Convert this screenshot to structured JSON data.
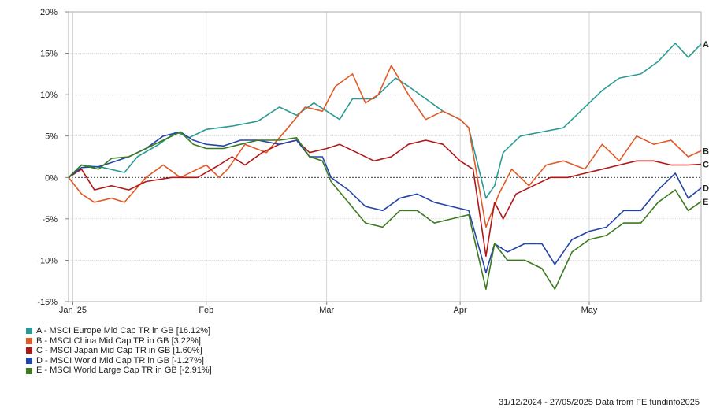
{
  "footer": "31/12/2024 - 27/05/2025 Data from FE fundinfo2025",
  "chart_data": {
    "type": "line",
    "ylim": [
      -15,
      20
    ],
    "y_ticks": [
      "20%",
      "15%",
      "10%",
      "5%",
      "0%",
      "-5%",
      "-10%",
      "-15%"
    ],
    "y_tick_values": [
      20,
      15,
      10,
      5,
      0,
      -5,
      -10,
      -15
    ],
    "x_range": [
      "2024-12-31",
      "2025-05-27"
    ],
    "x_ticks": [
      {
        "date": "2025-01-01",
        "label": "Jan '25"
      },
      {
        "date": "2025-02-01",
        "label": "Feb"
      },
      {
        "date": "2025-03-01",
        "label": "Mar"
      },
      {
        "date": "2025-04-01",
        "label": "Apr"
      },
      {
        "date": "2025-05-01",
        "label": "May"
      }
    ],
    "grid": true,
    "legend_position": "bottom-left",
    "series": [
      {
        "id": "A",
        "name": "A - MSCI Europe Mid Cap TR in GB [16.12%]",
        "color": "#2a9b94",
        "end_label": "A",
        "points": [
          [
            "2024-12-31",
            0
          ],
          [
            "2025-01-03",
            1.5
          ],
          [
            "2025-01-08",
            1.2
          ],
          [
            "2025-01-13",
            0.6
          ],
          [
            "2025-01-16",
            2.5
          ],
          [
            "2025-01-21",
            4
          ],
          [
            "2025-01-25",
            5.5
          ],
          [
            "2025-01-28",
            4.8
          ],
          [
            "2025-02-01",
            5.8
          ],
          [
            "2025-02-07",
            6.2
          ],
          [
            "2025-02-13",
            6.8
          ],
          [
            "2025-02-18",
            8.5
          ],
          [
            "2025-02-22",
            7.5
          ],
          [
            "2025-02-26",
            9
          ],
          [
            "2025-03-01",
            8
          ],
          [
            "2025-03-04",
            7
          ],
          [
            "2025-03-07",
            9.5
          ],
          [
            "2025-03-12",
            9.5
          ],
          [
            "2025-03-17",
            12
          ],
          [
            "2025-03-20",
            11
          ],
          [
            "2025-03-24",
            9.5
          ],
          [
            "2025-03-28",
            8
          ],
          [
            "2025-04-01",
            7
          ],
          [
            "2025-04-03",
            6
          ],
          [
            "2025-04-07",
            -2.5
          ],
          [
            "2025-04-09",
            -1
          ],
          [
            "2025-04-11",
            3
          ],
          [
            "2025-04-15",
            5
          ],
          [
            "2025-04-20",
            5.5
          ],
          [
            "2025-04-25",
            6
          ],
          [
            "2025-04-30",
            8.5
          ],
          [
            "2025-05-04",
            10.5
          ],
          [
            "2025-05-08",
            12
          ],
          [
            "2025-05-13",
            12.5
          ],
          [
            "2025-05-17",
            14
          ],
          [
            "2025-05-21",
            16.2
          ],
          [
            "2025-05-24",
            14.5
          ],
          [
            "2025-05-27",
            16.12
          ]
        ]
      },
      {
        "id": "B",
        "name": "B - MSCI China Mid Cap TR in GB [3.22%]",
        "color": "#e05a28",
        "end_label": "B",
        "points": [
          [
            "2024-12-31",
            0
          ],
          [
            "2025-01-03",
            -2
          ],
          [
            "2025-01-06",
            -3
          ],
          [
            "2025-01-10",
            -2.5
          ],
          [
            "2025-01-13",
            -3
          ],
          [
            "2025-01-18",
            0
          ],
          [
            "2025-01-22",
            1.5
          ],
          [
            "2025-01-26",
            0
          ],
          [
            "2025-02-01",
            1.5
          ],
          [
            "2025-02-04",
            0
          ],
          [
            "2025-02-06",
            1
          ],
          [
            "2025-02-10",
            4
          ],
          [
            "2025-02-15",
            3
          ],
          [
            "2025-02-20",
            6
          ],
          [
            "2025-02-24",
            8.5
          ],
          [
            "2025-02-28",
            8
          ],
          [
            "2025-03-03",
            11
          ],
          [
            "2025-03-07",
            12.5
          ],
          [
            "2025-03-10",
            9
          ],
          [
            "2025-03-13",
            10
          ],
          [
            "2025-03-16",
            13.5
          ],
          [
            "2025-03-20",
            10
          ],
          [
            "2025-03-24",
            7
          ],
          [
            "2025-03-28",
            8
          ],
          [
            "2025-04-01",
            7
          ],
          [
            "2025-04-03",
            6
          ],
          [
            "2025-04-07",
            -6
          ],
          [
            "2025-04-10",
            -2
          ],
          [
            "2025-04-13",
            1
          ],
          [
            "2025-04-17",
            -1
          ],
          [
            "2025-04-21",
            1.5
          ],
          [
            "2025-04-25",
            2
          ],
          [
            "2025-04-30",
            1
          ],
          [
            "2025-05-04",
            4
          ],
          [
            "2025-05-08",
            2
          ],
          [
            "2025-05-12",
            5
          ],
          [
            "2025-05-16",
            4
          ],
          [
            "2025-05-20",
            4.5
          ],
          [
            "2025-05-24",
            2.5
          ],
          [
            "2025-05-27",
            3.22
          ]
        ]
      },
      {
        "id": "C",
        "name": "C - MSCI Japan Mid Cap TR in GB [1.60%]",
        "color": "#b01818",
        "end_label": "C",
        "points": [
          [
            "2024-12-31",
            0
          ],
          [
            "2025-01-03",
            1
          ],
          [
            "2025-01-06",
            -1.5
          ],
          [
            "2025-01-10",
            -1
          ],
          [
            "2025-01-14",
            -1.5
          ],
          [
            "2025-01-18",
            -0.5
          ],
          [
            "2025-01-24",
            0
          ],
          [
            "2025-01-30",
            0
          ],
          [
            "2025-02-04",
            1.5
          ],
          [
            "2025-02-07",
            2.5
          ],
          [
            "2025-02-10",
            1.5
          ],
          [
            "2025-02-14",
            3
          ],
          [
            "2025-02-18",
            4
          ],
          [
            "2025-02-22",
            4.5
          ],
          [
            "2025-02-25",
            3
          ],
          [
            "2025-03-01",
            3.5
          ],
          [
            "2025-03-04",
            4
          ],
          [
            "2025-03-08",
            3
          ],
          [
            "2025-03-12",
            2
          ],
          [
            "2025-03-16",
            2.5
          ],
          [
            "2025-03-20",
            4
          ],
          [
            "2025-03-24",
            4.5
          ],
          [
            "2025-03-28",
            4
          ],
          [
            "2025-04-01",
            2
          ],
          [
            "2025-04-04",
            1
          ],
          [
            "2025-04-07",
            -9.5
          ],
          [
            "2025-04-09",
            -3
          ],
          [
            "2025-04-11",
            -5
          ],
          [
            "2025-04-14",
            -2
          ],
          [
            "2025-04-18",
            -1
          ],
          [
            "2025-04-22",
            0
          ],
          [
            "2025-04-26",
            0
          ],
          [
            "2025-04-30",
            0.5
          ],
          [
            "2025-05-04",
            1
          ],
          [
            "2025-05-08",
            1.5
          ],
          [
            "2025-05-12",
            2
          ],
          [
            "2025-05-16",
            2
          ],
          [
            "2025-05-20",
            1.5
          ],
          [
            "2025-05-24",
            1.5
          ],
          [
            "2025-05-27",
            1.6
          ]
        ]
      },
      {
        "id": "D",
        "name": "D - MSCI World Mid Cap TR in GB [-1.27%]",
        "color": "#2345a8",
        "end_label": "D",
        "points": [
          [
            "2024-12-31",
            0
          ],
          [
            "2025-01-03",
            1.2
          ],
          [
            "2025-01-07",
            1.3
          ],
          [
            "2025-01-10",
            1.8
          ],
          [
            "2025-01-14",
            2.5
          ],
          [
            "2025-01-18",
            3.5
          ],
          [
            "2025-01-22",
            5
          ],
          [
            "2025-01-26",
            5.5
          ],
          [
            "2025-01-29",
            4.5
          ],
          [
            "2025-02-01",
            4
          ],
          [
            "2025-02-05",
            3.8
          ],
          [
            "2025-02-09",
            4.5
          ],
          [
            "2025-02-13",
            4.5
          ],
          [
            "2025-02-18",
            4
          ],
          [
            "2025-02-22",
            4.5
          ],
          [
            "2025-02-25",
            2.5
          ],
          [
            "2025-02-28",
            2.5
          ],
          [
            "2025-03-02",
            0
          ],
          [
            "2025-03-06",
            -1.5
          ],
          [
            "2025-03-10",
            -3.5
          ],
          [
            "2025-03-14",
            -4
          ],
          [
            "2025-03-18",
            -2.5
          ],
          [
            "2025-03-22",
            -2
          ],
          [
            "2025-03-26",
            -3
          ],
          [
            "2025-03-30",
            -3.5
          ],
          [
            "2025-04-03",
            -4
          ],
          [
            "2025-04-07",
            -11.5
          ],
          [
            "2025-04-09",
            -8
          ],
          [
            "2025-04-12",
            -9
          ],
          [
            "2025-04-16",
            -8
          ],
          [
            "2025-04-20",
            -8
          ],
          [
            "2025-04-23",
            -10.5
          ],
          [
            "2025-04-27",
            -7.5
          ],
          [
            "2025-05-01",
            -6.5
          ],
          [
            "2025-05-05",
            -6
          ],
          [
            "2025-05-09",
            -4
          ],
          [
            "2025-05-13",
            -4
          ],
          [
            "2025-05-17",
            -1.5
          ],
          [
            "2025-05-21",
            0.5
          ],
          [
            "2025-05-24",
            -2.5
          ],
          [
            "2025-05-27",
            -1.27
          ]
        ]
      },
      {
        "id": "E",
        "name": "E - MSCI World Large Cap TR in GB [-2.91%]",
        "color": "#3b7a1f",
        "end_label": "E",
        "points": [
          [
            "2024-12-31",
            0
          ],
          [
            "2025-01-03",
            1.5
          ],
          [
            "2025-01-07",
            1
          ],
          [
            "2025-01-10",
            2.3
          ],
          [
            "2025-01-14",
            2.5
          ],
          [
            "2025-01-18",
            3.5
          ],
          [
            "2025-01-22",
            4.5
          ],
          [
            "2025-01-26",
            5.5
          ],
          [
            "2025-01-29",
            4
          ],
          [
            "2025-02-01",
            3.5
          ],
          [
            "2025-02-05",
            3.5
          ],
          [
            "2025-02-09",
            4
          ],
          [
            "2025-02-13",
            4.5
          ],
          [
            "2025-02-18",
            4.5
          ],
          [
            "2025-02-22",
            4.8
          ],
          [
            "2025-02-25",
            2.5
          ],
          [
            "2025-02-28",
            2
          ],
          [
            "2025-03-02",
            -0.5
          ],
          [
            "2025-03-06",
            -3
          ],
          [
            "2025-03-10",
            -5.5
          ],
          [
            "2025-03-14",
            -6
          ],
          [
            "2025-03-18",
            -4
          ],
          [
            "2025-03-22",
            -4
          ],
          [
            "2025-03-26",
            -5.5
          ],
          [
            "2025-03-30",
            -5
          ],
          [
            "2025-04-03",
            -4.5
          ],
          [
            "2025-04-07",
            -13.5
          ],
          [
            "2025-04-09",
            -8
          ],
          [
            "2025-04-12",
            -10
          ],
          [
            "2025-04-16",
            -10
          ],
          [
            "2025-04-20",
            -11
          ],
          [
            "2025-04-23",
            -13.5
          ],
          [
            "2025-04-27",
            -9
          ],
          [
            "2025-05-01",
            -7.5
          ],
          [
            "2025-05-05",
            -7
          ],
          [
            "2025-05-09",
            -5.5
          ],
          [
            "2025-05-13",
            -5.5
          ],
          [
            "2025-05-17",
            -3
          ],
          [
            "2025-05-21",
            -1.5
          ],
          [
            "2025-05-24",
            -4
          ],
          [
            "2025-05-27",
            -2.91
          ]
        ]
      }
    ]
  }
}
